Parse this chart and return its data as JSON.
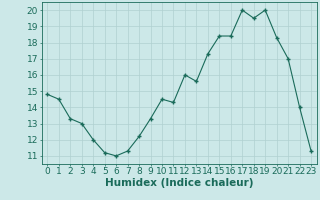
{
  "x": [
    0,
    1,
    2,
    3,
    4,
    5,
    6,
    7,
    8,
    9,
    10,
    11,
    12,
    13,
    14,
    15,
    16,
    17,
    18,
    19,
    20,
    21,
    22,
    23
  ],
  "y": [
    14.8,
    14.5,
    13.3,
    13.0,
    12.0,
    11.2,
    11.0,
    11.3,
    12.2,
    13.3,
    14.5,
    14.3,
    16.0,
    15.6,
    17.3,
    18.4,
    18.4,
    20.0,
    19.5,
    20.0,
    18.3,
    17.0,
    14.0,
    11.3
  ],
  "xlabel": "Humidex (Indice chaleur)",
  "xlim": [
    -0.5,
    23.5
  ],
  "ylim": [
    10.5,
    20.5
  ],
  "yticks": [
    11,
    12,
    13,
    14,
    15,
    16,
    17,
    18,
    19,
    20
  ],
  "xticks": [
    0,
    1,
    2,
    3,
    4,
    5,
    6,
    7,
    8,
    9,
    10,
    11,
    12,
    13,
    14,
    15,
    16,
    17,
    18,
    19,
    20,
    21,
    22,
    23
  ],
  "line_color": "#1a6b5a",
  "marker_color": "#1a6b5a",
  "bg_color": "#cce8e8",
  "grid_major_color": "#b0d0d0",
  "grid_minor_color": "#c0dcdc",
  "axis_color": "#1a6b5a",
  "label_color": "#1a6b5a",
  "xlabel_fontsize": 7.5,
  "tick_fontsize": 6.5
}
